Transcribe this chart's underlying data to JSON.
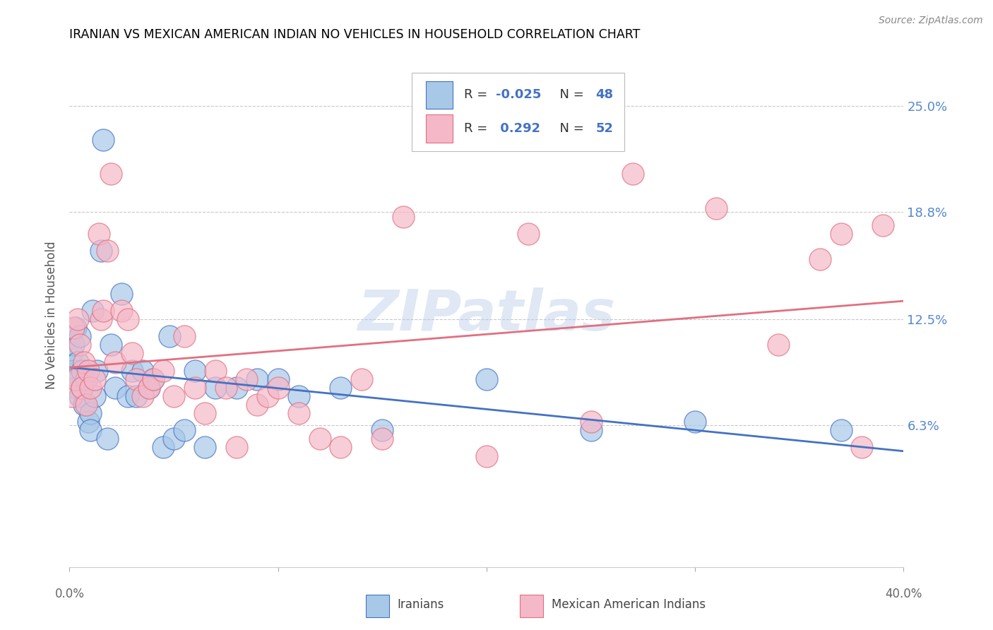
{
  "title": "IRANIAN VS MEXICAN AMERICAN INDIAN NO VEHICLES IN HOUSEHOLD CORRELATION CHART",
  "source": "Source: ZipAtlas.com",
  "ylabel": "No Vehicles in Household",
  "ytick_labels": [
    "6.3%",
    "12.5%",
    "18.8%",
    "25.0%"
  ],
  "ytick_values": [
    0.063,
    0.125,
    0.188,
    0.25
  ],
  "xmin": 0.0,
  "xmax": 0.4,
  "ymin": -0.02,
  "ymax": 0.275,
  "color_iranian": "#a8c8e8",
  "color_mexican": "#f5b8c8",
  "color_line_iranian": "#4472c4",
  "color_line_mexican": "#e07080",
  "watermark": "ZIPatlas",
  "r_iranian": "-0.025",
  "n_iranian": "48",
  "r_mexican": "0.292",
  "n_mexican": "52",
  "iranians_x": [
    0.001,
    0.002,
    0.002,
    0.003,
    0.003,
    0.004,
    0.004,
    0.005,
    0.005,
    0.006,
    0.006,
    0.007,
    0.008,
    0.009,
    0.01,
    0.01,
    0.011,
    0.012,
    0.013,
    0.015,
    0.016,
    0.018,
    0.02,
    0.022,
    0.025,
    0.028,
    0.03,
    0.032,
    0.035,
    0.038,
    0.04,
    0.045,
    0.048,
    0.05,
    0.055,
    0.06,
    0.065,
    0.07,
    0.08,
    0.09,
    0.1,
    0.11,
    0.13,
    0.15,
    0.2,
    0.25,
    0.3,
    0.37
  ],
  "iranians_y": [
    0.105,
    0.11,
    0.095,
    0.085,
    0.12,
    0.1,
    0.09,
    0.115,
    0.08,
    0.095,
    0.085,
    0.075,
    0.09,
    0.065,
    0.07,
    0.06,
    0.13,
    0.08,
    0.095,
    0.165,
    0.23,
    0.055,
    0.11,
    0.085,
    0.14,
    0.08,
    0.095,
    0.08,
    0.095,
    0.085,
    0.09,
    0.05,
    0.115,
    0.055,
    0.06,
    0.095,
    0.05,
    0.085,
    0.085,
    0.09,
    0.09,
    0.08,
    0.085,
    0.06,
    0.09,
    0.06,
    0.065,
    0.06
  ],
  "mexicans_x": [
    0.001,
    0.002,
    0.003,
    0.004,
    0.005,
    0.006,
    0.007,
    0.008,
    0.009,
    0.01,
    0.012,
    0.014,
    0.015,
    0.016,
    0.018,
    0.02,
    0.022,
    0.025,
    0.028,
    0.03,
    0.032,
    0.035,
    0.038,
    0.04,
    0.045,
    0.05,
    0.055,
    0.06,
    0.065,
    0.07,
    0.075,
    0.08,
    0.085,
    0.09,
    0.095,
    0.1,
    0.11,
    0.12,
    0.13,
    0.14,
    0.15,
    0.16,
    0.2,
    0.22,
    0.25,
    0.27,
    0.31,
    0.34,
    0.36,
    0.37,
    0.38,
    0.39
  ],
  "mexicans_y": [
    0.08,
    0.12,
    0.09,
    0.125,
    0.11,
    0.085,
    0.1,
    0.075,
    0.095,
    0.085,
    0.09,
    0.175,
    0.125,
    0.13,
    0.165,
    0.21,
    0.1,
    0.13,
    0.125,
    0.105,
    0.09,
    0.08,
    0.085,
    0.09,
    0.095,
    0.08,
    0.115,
    0.085,
    0.07,
    0.095,
    0.085,
    0.05,
    0.09,
    0.075,
    0.08,
    0.085,
    0.07,
    0.055,
    0.05,
    0.09,
    0.055,
    0.185,
    0.045,
    0.175,
    0.065,
    0.21,
    0.19,
    0.11,
    0.16,
    0.175,
    0.05,
    0.18
  ]
}
